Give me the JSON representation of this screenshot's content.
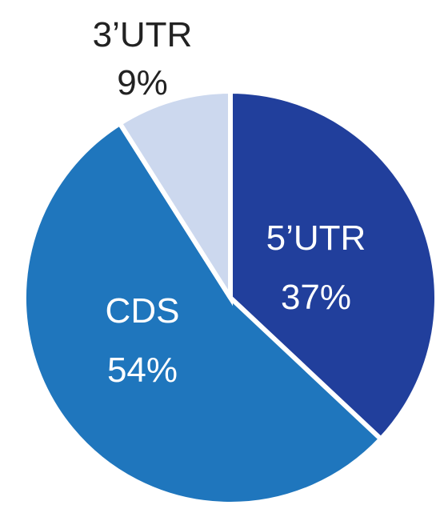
{
  "chart_data": {
    "type": "pie",
    "slices": [
      {
        "label": "5’UTR",
        "value": 37,
        "value_label": "37%",
        "color": "#213f9c",
        "text_color": "#ffffff"
      },
      {
        "label": "CDS",
        "value": 54,
        "value_label": "54%",
        "color": "#1f76bd",
        "text_color": "#ffffff"
      },
      {
        "label": "3’UTR",
        "value": 9,
        "value_label": "9%",
        "color": "#ccd8ee",
        "text_color": "#222222"
      }
    ],
    "start_angle": "12 o'clock",
    "direction": "clockwise",
    "slice_separator_color": "#ffffff",
    "legend": "none"
  }
}
